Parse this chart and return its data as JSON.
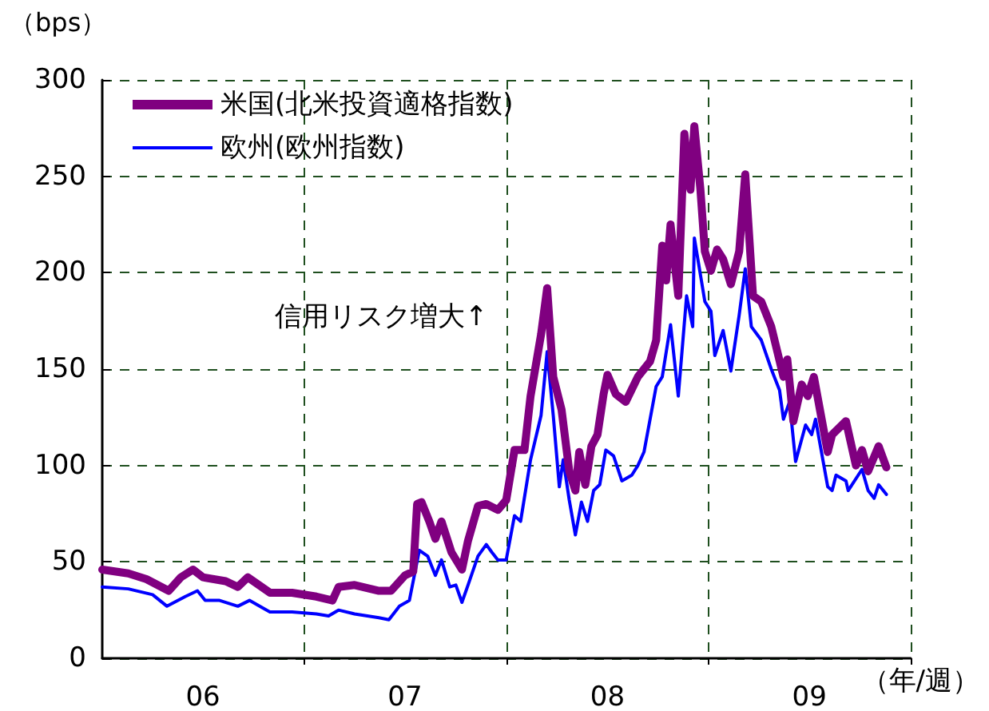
{
  "chart_data": {
    "type": "line",
    "xlabel": "（年/週）",
    "ylabel": "（bps）",
    "annotations": [
      "信用リスク増大↑"
    ],
    "xlim": [
      "2006-01-01",
      "2010-01-01"
    ],
    "xticks": [
      {
        "value": "2006-07-02",
        "label": "06"
      },
      {
        "value": "2007-01-01",
        "label": null
      },
      {
        "value": "2007-07-02",
        "label": "07"
      },
      {
        "value": "2008-01-01",
        "label": null
      },
      {
        "value": "2008-07-02",
        "label": "08"
      },
      {
        "value": "2009-01-01",
        "label": null
      },
      {
        "value": "2009-07-02",
        "label": "09"
      },
      {
        "value": "2010-01-01",
        "label": null
      }
    ],
    "ylim": [
      0,
      300
    ],
    "yticks": [
      0,
      50,
      100,
      150,
      200,
      250,
      300
    ],
    "grid": true,
    "legend": "top left",
    "marker": "none",
    "line_style": "solid",
    "series": [
      {
        "name": "米国(北米投資適格指数)",
        "color": "#800080",
        "x": [
          "2006-01-01",
          "2006-02-17",
          "2006-03-22",
          "2006-05-01",
          "2006-05-23",
          "2006-06-14",
          "2006-07-02",
          "2006-08-12",
          "2006-09-03",
          "2006-09-21",
          "2006-10-31",
          "2006-12-10",
          "2007-01-23",
          "2007-02-21",
          "2007-03-04",
          "2007-04-02",
          "2007-05-16",
          "2007-06-07",
          "2007-07-02",
          "2007-07-17",
          "2007-07-24",
          "2007-08-01",
          "2007-08-15",
          "2007-08-26",
          "2007-09-06",
          "2007-09-24",
          "2007-10-13",
          "2007-10-24",
          "2007-11-11",
          "2007-11-26",
          "2007-12-17",
          "2008-01-01",
          "2008-01-16",
          "2008-02-03",
          "2008-02-14",
          "2008-03-04",
          "2008-03-15",
          "2008-03-26",
          "2008-04-10",
          "2008-04-24",
          "2008-05-05",
          "2008-05-12",
          "2008-05-23",
          "2008-06-03",
          "2008-06-14",
          "2008-06-25",
          "2008-07-02",
          "2008-07-17",
          "2008-08-04",
          "2008-08-26",
          "2008-09-17",
          "2008-09-28",
          "2008-10-09",
          "2008-10-16",
          "2008-10-24",
          "2008-11-07",
          "2008-11-18",
          "2008-11-29",
          "2008-12-06",
          "2008-12-17",
          "2008-12-25",
          "2009-01-05",
          "2009-01-16",
          "2009-01-27",
          "2009-02-10",
          "2009-02-25",
          "2009-03-08",
          "2009-03-22",
          "2009-04-06",
          "2009-04-24",
          "2009-05-16",
          "2009-05-23",
          "2009-06-03",
          "2009-06-18",
          "2009-06-29",
          "2009-07-10",
          "2009-08-04",
          "2009-08-12",
          "2009-09-06",
          "2009-09-24",
          "2009-10-05",
          "2009-10-16",
          "2009-11-04",
          "2009-11-18"
        ],
        "values": [
          46,
          44,
          41,
          35,
          42,
          46,
          42,
          40,
          37,
          42,
          34,
          34,
          32,
          30,
          37,
          38,
          35,
          35,
          43,
          45,
          80,
          81,
          71,
          62,
          71,
          55,
          46,
          61,
          79,
          80,
          77,
          82,
          108,
          108,
          136,
          168,
          192,
          146,
          129,
          97,
          87,
          107,
          90,
          110,
          116,
          137,
          147,
          137,
          133,
          146,
          154,
          165,
          214,
          196,
          225,
          188,
          272,
          243,
          276,
          243,
          211,
          201,
          212,
          207,
          194,
          211,
          251,
          188,
          185,
          172,
          146,
          155,
          123,
          142,
          136,
          146,
          107,
          116,
          123,
          100,
          108,
          97,
          110,
          99
        ]
      },
      {
        "name": "欧州(欧州指数)",
        "color": "#0000ff",
        "x": [
          "2006-01-01",
          "2006-02-17",
          "2006-04-02",
          "2006-04-28",
          "2006-05-31",
          "2006-06-22",
          "2006-07-06",
          "2006-08-01",
          "2006-09-03",
          "2006-09-24",
          "2006-10-31",
          "2006-12-10",
          "2007-01-23",
          "2007-02-14",
          "2007-03-04",
          "2007-04-02",
          "2007-05-16",
          "2007-06-03",
          "2007-06-22",
          "2007-07-10",
          "2007-07-28",
          "2007-08-12",
          "2007-08-26",
          "2007-09-06",
          "2007-09-21",
          "2007-10-02",
          "2007-10-13",
          "2007-10-24",
          "2007-11-11",
          "2007-11-26",
          "2007-12-06",
          "2007-12-17",
          "2008-01-01",
          "2008-01-16",
          "2008-01-27",
          "2008-02-14",
          "2008-03-04",
          "2008-03-15",
          "2008-03-26",
          "2008-04-06",
          "2008-04-13",
          "2008-04-24",
          "2008-05-05",
          "2008-05-16",
          "2008-05-27",
          "2008-06-07",
          "2008-06-18",
          "2008-06-29",
          "2008-07-13",
          "2008-07-28",
          "2008-08-15",
          "2008-08-26",
          "2008-09-06",
          "2008-09-28",
          "2008-10-09",
          "2008-10-24",
          "2008-11-07",
          "2008-11-22",
          "2008-12-03",
          "2008-12-06",
          "2008-12-25",
          "2009-01-05",
          "2009-01-12",
          "2009-01-27",
          "2009-02-10",
          "2009-02-25",
          "2009-03-08",
          "2009-03-19",
          "2009-04-06",
          "2009-04-24",
          "2009-05-09",
          "2009-05-16",
          "2009-05-27",
          "2009-06-07",
          "2009-06-25",
          "2009-07-06",
          "2009-07-13",
          "2009-08-04",
          "2009-08-12",
          "2009-08-19",
          "2009-09-06",
          "2009-09-10",
          "2009-10-05",
          "2009-10-16",
          "2009-10-27",
          "2009-11-04",
          "2009-11-18"
        ],
        "values": [
          37,
          36,
          33,
          27,
          32,
          35,
          30,
          30,
          27,
          30,
          24,
          24,
          23,
          22,
          25,
          23,
          21,
          20,
          27,
          30,
          56,
          53,
          43,
          51,
          37,
          38,
          29,
          38,
          53,
          59,
          55,
          51,
          51,
          74,
          71,
          103,
          126,
          159,
          126,
          89,
          103,
          82,
          64,
          81,
          71,
          87,
          90,
          108,
          105,
          92,
          95,
          100,
          107,
          141,
          146,
          173,
          136,
          188,
          172,
          218,
          185,
          180,
          157,
          170,
          149,
          178,
          202,
          172,
          165,
          150,
          139,
          124,
          133,
          102,
          121,
          116,
          124,
          89,
          87,
          95,
          92,
          87,
          98,
          87,
          83,
          90,
          85
        ]
      }
    ]
  }
}
